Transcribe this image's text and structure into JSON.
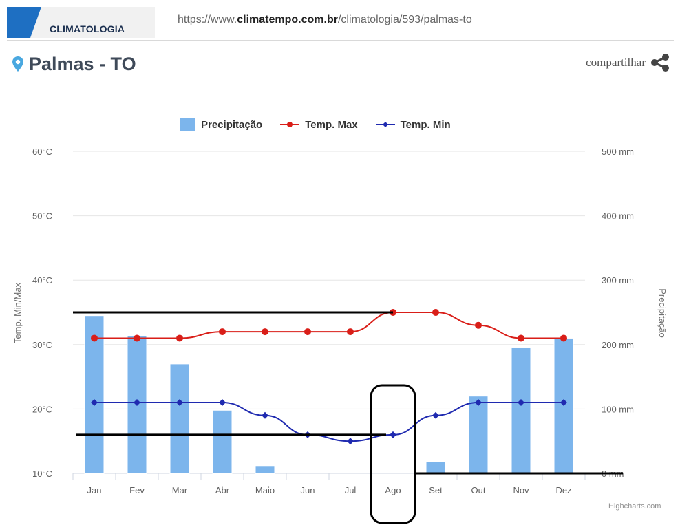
{
  "header": {
    "tag_label": "CLIMATOLOGIA",
    "url_prefix": "https://www.",
    "url_bold": "climatempo.com.br",
    "url_suffix": "/climatologia/593/palmas-to"
  },
  "location": {
    "name": "Palmas - TO"
  },
  "share": {
    "label": "compartilhar"
  },
  "colors": {
    "brand_blue": "#1e6fc2",
    "precip_bar": "#7cb5ec",
    "temp_max": "#d91e18",
    "temp_min": "#1f2ab0",
    "annotation": "#000000",
    "location_icon": "#4aa8e0"
  },
  "chart_data": {
    "type": "bar+line",
    "categories": [
      "Jan",
      "Fev",
      "Mar",
      "Abr",
      "Maio",
      "Jun",
      "Jul",
      "Ago",
      "Set",
      "Out",
      "Nov",
      "Dez"
    ],
    "series": [
      {
        "name": "Precipitação",
        "type": "bar",
        "axis": "right",
        "unit": "mm",
        "values": [
          245,
          214,
          170,
          98,
          12,
          0,
          0,
          0,
          18,
          120,
          195,
          210
        ]
      },
      {
        "name": "Temp. Max",
        "type": "line",
        "axis": "left",
        "unit": "°C",
        "values": [
          31,
          31,
          31,
          32,
          32,
          32,
          32,
          35,
          35,
          33,
          31,
          31
        ]
      },
      {
        "name": "Temp. Min",
        "type": "line",
        "axis": "left",
        "unit": "°C",
        "values": [
          21,
          21,
          21,
          21,
          19,
          16,
          15,
          16,
          19,
          21,
          21,
          21
        ]
      }
    ],
    "left_axis": {
      "title": "Temp. Min/Max",
      "range": [
        10,
        60
      ],
      "ticks": [
        "10°C",
        "20°C",
        "30°C",
        "40°C",
        "50°C",
        "60°C"
      ]
    },
    "right_axis": {
      "title": "Precipitação",
      "range": [
        0,
        500
      ],
      "ticks": [
        "0 mm",
        "100 mm",
        "200 mm",
        "300 mm",
        "400 mm",
        "500 mm"
      ]
    },
    "grid": true,
    "legend_position": "top-center",
    "credit": "Highcharts.com",
    "annotations": {
      "max_temp_line_celsius": 35,
      "min_temp_line_celsius": 16,
      "zero_precip_line_mm": 0,
      "highlighted_month": "Ago"
    }
  }
}
